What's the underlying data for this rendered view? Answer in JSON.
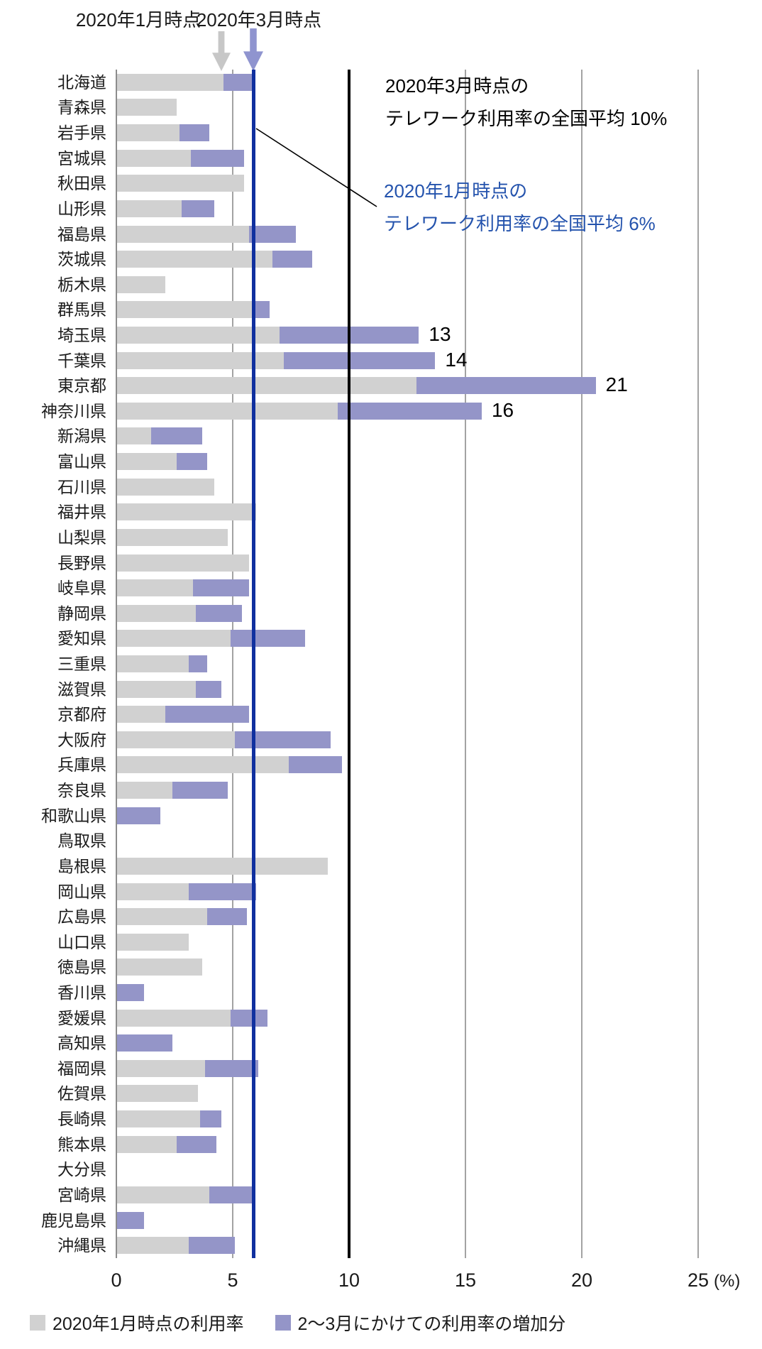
{
  "header": {
    "jan_arrow_label": "2020年1月時点",
    "mar_arrow_label": "2020年3月時点"
  },
  "annotations": {
    "mar_line1": "2020年3月時点の",
    "mar_line2": "テレワーク利用率の全国平均 10%",
    "jan_line1": "2020年1月時点の",
    "jan_line2": "テレワーク利用率の全国平均 6%"
  },
  "axis": {
    "ticks": [
      0,
      5,
      10,
      15,
      20,
      25
    ],
    "unit_label": "(%)"
  },
  "reference_lines": {
    "jan_average": 5.9,
    "mar_average": 10
  },
  "legend": {
    "jan_label": "2020年1月時点の利用率",
    "inc_label": "2～3月にかけての利用率の増加分",
    "jan_color": "#d1d1d1",
    "inc_color": "#9495c8"
  },
  "colors": {
    "jan_bar": "#d1d1d1",
    "inc_bar": "#9495c8",
    "jan_avg_line": "#10309f",
    "mar_avg_line": "#000000",
    "jan_annotation_text": "#2453ad",
    "gridline": "#a3a3a3"
  },
  "chart_data": {
    "type": "bar",
    "orientation": "horizontal",
    "stacked": true,
    "xlabel": "(%)",
    "xlim": [
      0,
      25
    ],
    "x_ticks": [
      0,
      5,
      10,
      15,
      20,
      25
    ],
    "series_names": [
      "2020年1月時点の利用率",
      "2～3月にかけての利用率の増加分"
    ],
    "rows": [
      {
        "name": "北海道",
        "jan": 4.6,
        "inc": 1.3,
        "label": null
      },
      {
        "name": "青森県",
        "jan": 2.6,
        "inc": 0,
        "label": null
      },
      {
        "name": "岩手県",
        "jan": 2.7,
        "inc": 1.3,
        "label": null
      },
      {
        "name": "宮城県",
        "jan": 3.2,
        "inc": 2.3,
        "label": null
      },
      {
        "name": "秋田県",
        "jan": 5.5,
        "inc": 0,
        "label": null
      },
      {
        "name": "山形県",
        "jan": 2.8,
        "inc": 1.4,
        "label": null
      },
      {
        "name": "福島県",
        "jan": 5.7,
        "inc": 2.0,
        "label": null
      },
      {
        "name": "茨城県",
        "jan": 6.7,
        "inc": 1.7,
        "label": null
      },
      {
        "name": "栃木県",
        "jan": 2.1,
        "inc": 0,
        "label": null
      },
      {
        "name": "群馬県",
        "jan": 5.9,
        "inc": 0.7,
        "label": null
      },
      {
        "name": "埼玉県",
        "jan": 7.0,
        "inc": 6.0,
        "label": "13"
      },
      {
        "name": "千葉県",
        "jan": 7.2,
        "inc": 6.5,
        "label": "14"
      },
      {
        "name": "東京都",
        "jan": 12.9,
        "inc": 7.7,
        "label": "21"
      },
      {
        "name": "神奈川県",
        "jan": 9.5,
        "inc": 6.2,
        "label": "16"
      },
      {
        "name": "新潟県",
        "jan": 1.5,
        "inc": 2.2,
        "label": null
      },
      {
        "name": "富山県",
        "jan": 2.6,
        "inc": 1.3,
        "label": null
      },
      {
        "name": "石川県",
        "jan": 4.2,
        "inc": 0,
        "label": null
      },
      {
        "name": "福井県",
        "jan": 6.0,
        "inc": 0,
        "label": null
      },
      {
        "name": "山梨県",
        "jan": 4.8,
        "inc": 0,
        "label": null
      },
      {
        "name": "長野県",
        "jan": 5.7,
        "inc": 0,
        "label": null
      },
      {
        "name": "岐阜県",
        "jan": 3.3,
        "inc": 2.4,
        "label": null
      },
      {
        "name": "静岡県",
        "jan": 3.4,
        "inc": 2.0,
        "label": null
      },
      {
        "name": "愛知県",
        "jan": 4.9,
        "inc": 3.2,
        "label": null
      },
      {
        "name": "三重県",
        "jan": 3.1,
        "inc": 0.8,
        "label": null
      },
      {
        "name": "滋賀県",
        "jan": 3.4,
        "inc": 1.1,
        "label": null
      },
      {
        "name": "京都府",
        "jan": 2.1,
        "inc": 3.6,
        "label": null
      },
      {
        "name": "大阪府",
        "jan": 5.1,
        "inc": 4.1,
        "label": null
      },
      {
        "name": "兵庫県",
        "jan": 7.4,
        "inc": 2.3,
        "label": null
      },
      {
        "name": "奈良県",
        "jan": 2.4,
        "inc": 2.4,
        "label": null
      },
      {
        "name": "和歌山県",
        "jan": 0,
        "inc": 1.9,
        "label": null
      },
      {
        "name": "鳥取県",
        "jan": 0,
        "inc": 0,
        "label": null
      },
      {
        "name": "島根県",
        "jan": 9.1,
        "inc": 0,
        "label": null
      },
      {
        "name": "岡山県",
        "jan": 3.1,
        "inc": 2.9,
        "label": null
      },
      {
        "name": "広島県",
        "jan": 3.9,
        "inc": 1.7,
        "label": null
      },
      {
        "name": "山口県",
        "jan": 3.1,
        "inc": 0,
        "label": null
      },
      {
        "name": "徳島県",
        "jan": 3.7,
        "inc": 0,
        "label": null
      },
      {
        "name": "香川県",
        "jan": 0,
        "inc": 1.2,
        "label": null
      },
      {
        "name": "愛媛県",
        "jan": 4.9,
        "inc": 1.6,
        "label": null
      },
      {
        "name": "高知県",
        "jan": 0,
        "inc": 2.4,
        "label": null
      },
      {
        "name": "福岡県",
        "jan": 3.8,
        "inc": 2.3,
        "label": null
      },
      {
        "name": "佐賀県",
        "jan": 3.5,
        "inc": 0,
        "label": null
      },
      {
        "name": "長崎県",
        "jan": 3.6,
        "inc": 0.9,
        "label": null
      },
      {
        "name": "熊本県",
        "jan": 2.6,
        "inc": 1.7,
        "label": null
      },
      {
        "name": "大分県",
        "jan": 0,
        "inc": 0,
        "label": null
      },
      {
        "name": "宮崎県",
        "jan": 4.0,
        "inc": 1.9,
        "label": null
      },
      {
        "name": "鹿児島県",
        "jan": 0,
        "inc": 1.2,
        "label": null
      },
      {
        "name": "沖縄県",
        "jan": 3.1,
        "inc": 2.0,
        "label": null
      }
    ]
  }
}
